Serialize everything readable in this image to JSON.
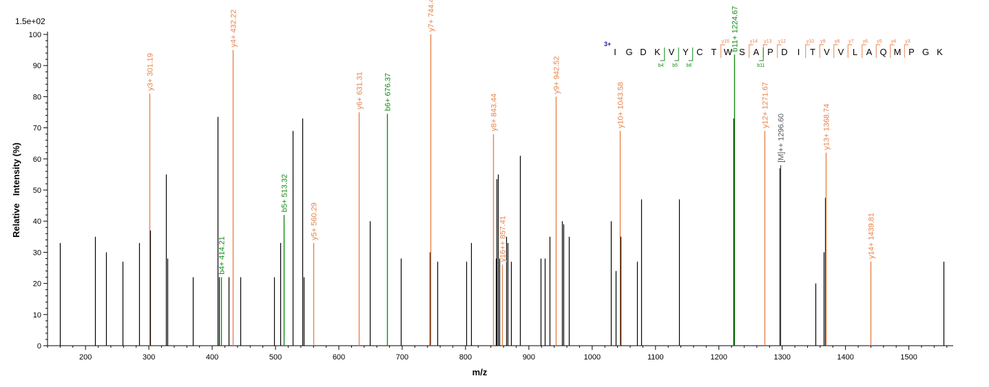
{
  "chart_data": {
    "type": "bar",
    "scale_label": "1.5e+02",
    "xlabel": "m/z",
    "ylabel": "Relative   Intensity (%)",
    "xlim": [
      140,
      1570
    ],
    "ylim": [
      0,
      100
    ],
    "x_ticks": [
      200,
      300,
      400,
      500,
      600,
      700,
      800,
      900,
      1000,
      1100,
      1200,
      1300,
      1400,
      1500
    ],
    "y_ticks": [
      0,
      10,
      20,
      30,
      40,
      50,
      60,
      70,
      80,
      90,
      100
    ],
    "colors": {
      "y_ion": "#e8834a",
      "b_ion": "#138a13",
      "other": "#000000",
      "precursor": "#555555",
      "charge": "#1a1aa8"
    },
    "peaks": [
      {
        "mz": 160,
        "intensity": 33
      },
      {
        "mz": 215,
        "intensity": 35
      },
      {
        "mz": 232,
        "intensity": 30
      },
      {
        "mz": 259,
        "intensity": 27
      },
      {
        "mz": 285,
        "intensity": 33
      },
      {
        "mz": 301.19,
        "intensity": 81,
        "ion": "y",
        "label": "y3+ 301.19"
      },
      {
        "mz": 302.5,
        "intensity": 37
      },
      {
        "mz": 327,
        "intensity": 55
      },
      {
        "mz": 329,
        "intensity": 28
      },
      {
        "mz": 369,
        "intensity": 22
      },
      {
        "mz": 409,
        "intensity": 73.5
      },
      {
        "mz": 411,
        "intensity": 22
      },
      {
        "mz": 414.21,
        "intensity": 22,
        "ion": "b",
        "label": "b4+ 414.21"
      },
      {
        "mz": 426,
        "intensity": 22
      },
      {
        "mz": 432.22,
        "intensity": 95,
        "ion": "y",
        "label": "y4+ 432.22"
      },
      {
        "mz": 445,
        "intensity": 22
      },
      {
        "mz": 498,
        "intensity": 22
      },
      {
        "mz": 508,
        "intensity": 33
      },
      {
        "mz": 513.32,
        "intensity": 42,
        "ion": "b",
        "label": "b5+ 513.32"
      },
      {
        "mz": 527,
        "intensity": 69
      },
      {
        "mz": 542,
        "intensity": 73
      },
      {
        "mz": 544,
        "intensity": 22
      },
      {
        "mz": 560.29,
        "intensity": 33,
        "ion": "y",
        "label": "y5+ 560.29"
      },
      {
        "mz": 631.31,
        "intensity": 75,
        "ion": "y",
        "label": "y6+ 631.31"
      },
      {
        "mz": 649,
        "intensity": 40
      },
      {
        "mz": 676.37,
        "intensity": 74.5,
        "ion": "b",
        "label": "b6+ 676.37"
      },
      {
        "mz": 698,
        "intensity": 28
      },
      {
        "mz": 743,
        "intensity": 30
      },
      {
        "mz": 744.42,
        "intensity": 100,
        "ion": "y",
        "label": "y7+ 744.42"
      },
      {
        "mz": 756,
        "intensity": 27
      },
      {
        "mz": 801,
        "intensity": 27
      },
      {
        "mz": 809,
        "intensity": 33
      },
      {
        "mz": 843.44,
        "intensity": 68,
        "ion": "y",
        "label": "y8+ 843.44"
      },
      {
        "mz": 848,
        "intensity": 28
      },
      {
        "mz": 849.5,
        "intensity": 53.5
      },
      {
        "mz": 851.5,
        "intensity": 55
      },
      {
        "mz": 853.5,
        "intensity": 28
      },
      {
        "mz": 857.41,
        "intensity": 26,
        "ion": "y",
        "label": "y16++ 857.41"
      },
      {
        "mz": 864,
        "intensity": 35
      },
      {
        "mz": 866,
        "intensity": 33
      },
      {
        "mz": 872,
        "intensity": 27
      },
      {
        "mz": 886,
        "intensity": 61
      },
      {
        "mz": 919,
        "intensity": 28
      },
      {
        "mz": 925,
        "intensity": 28
      },
      {
        "mz": 933,
        "intensity": 35
      },
      {
        "mz": 942.52,
        "intensity": 80,
        "ion": "y",
        "label": "y9+ 942.52"
      },
      {
        "mz": 952,
        "intensity": 40
      },
      {
        "mz": 954,
        "intensity": 39
      },
      {
        "mz": 963,
        "intensity": 35
      },
      {
        "mz": 1029,
        "intensity": 40
      },
      {
        "mz": 1037,
        "intensity": 24
      },
      {
        "mz": 1043.58,
        "intensity": 69,
        "ion": "y",
        "label": "y10+ 1043.58"
      },
      {
        "mz": 1045,
        "intensity": 35
      },
      {
        "mz": 1071,
        "intensity": 27
      },
      {
        "mz": 1077,
        "intensity": 47
      },
      {
        "mz": 1137,
        "intensity": 47
      },
      {
        "mz": 1223,
        "intensity": 73
      },
      {
        "mz": 1224.67,
        "intensity": 93.5,
        "ion": "b",
        "label": "b11+ 1224.67"
      },
      {
        "mz": 1271.67,
        "intensity": 69,
        "ion": "y",
        "label": "y12+ 1271.67"
      },
      {
        "mz": 1295.5,
        "intensity": 57
      },
      {
        "mz": 1296.6,
        "intensity": 58,
        "ion": "precursor",
        "label": "[M]++ 1296.60"
      },
      {
        "mz": 1352,
        "intensity": 20
      },
      {
        "mz": 1366,
        "intensity": 30
      },
      {
        "mz": 1367.5,
        "intensity": 47.5
      },
      {
        "mz": 1368.74,
        "intensity": 62,
        "ion": "y",
        "label": "y13+ 1368.74"
      },
      {
        "mz": 1439.81,
        "intensity": 27,
        "ion": "y",
        "label": "y14+ 1439.81"
      },
      {
        "mz": 1555,
        "intensity": 27
      }
    ],
    "sequence": {
      "charge": "3+",
      "residues": [
        "I",
        "G",
        "D",
        "K",
        "V",
        "Y",
        "C",
        "T",
        "W",
        "S",
        "A",
        "P",
        "D",
        "I",
        "T",
        "V",
        "V",
        "L",
        "A",
        "Q",
        "M",
        "P",
        "G",
        "K"
      ],
      "y_annotations": [
        {
          "after": 8,
          "label": "y16"
        },
        {
          "after": 10,
          "label": "y14"
        },
        {
          "after": 11,
          "label": "y13"
        },
        {
          "after": 12,
          "label": "y12"
        },
        {
          "after": 14,
          "label": "y10"
        },
        {
          "after": 15,
          "label": "y9"
        },
        {
          "after": 16,
          "label": "y8"
        },
        {
          "after": 17,
          "label": "y7"
        },
        {
          "after": 18,
          "label": "y6"
        },
        {
          "after": 19,
          "label": "y5"
        },
        {
          "after": 20,
          "label": "y4"
        },
        {
          "after": 21,
          "label": "y3"
        }
      ],
      "b_annotations": [
        {
          "after": 4,
          "label": "b4"
        },
        {
          "after": 5,
          "label": "b5"
        },
        {
          "after": 6,
          "label": "b6"
        },
        {
          "after": 11,
          "label": "b11"
        }
      ]
    }
  }
}
